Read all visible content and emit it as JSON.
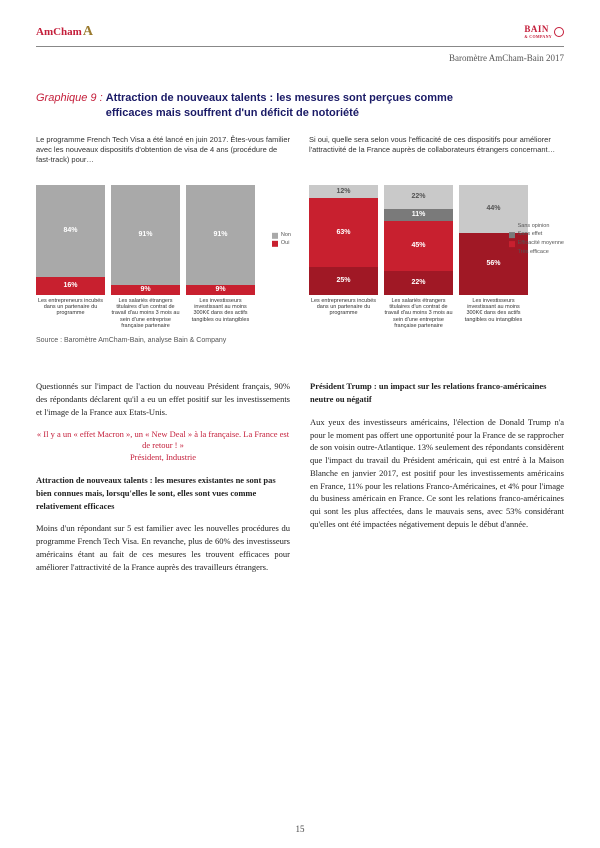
{
  "header": {
    "amcham": "AmCham",
    "bain": "BAIN",
    "bain_sub": "& COMPANY",
    "doc_title": "Baromètre AmCham-Bain 2017"
  },
  "graphique": {
    "num": "Graphique 9  : ",
    "title_line1": "Attraction de nouveaux talents : les mesures sont perçues comme",
    "title_line2": "efficaces mais souffrent d'un déficit de notoriété"
  },
  "chart_left": {
    "question": "Le programme French Tech Visa a été lancé en juin 2017. Êtes-vous familier avec les nouveaux dispositifs d'obtention de visa de 4 ans (procédure de fast-track) pour…",
    "bars": [
      {
        "segs": [
          {
            "v": 16,
            "c": "red",
            "t": "16%"
          },
          {
            "v": 84,
            "c": "grey",
            "t": "84%"
          }
        ],
        "label": "Les entrepreneurs incubés dans un partenaire du programme"
      },
      {
        "segs": [
          {
            "v": 9,
            "c": "red",
            "t": "9%"
          },
          {
            "v": 91,
            "c": "grey",
            "t": "91%"
          }
        ],
        "label": "Les salariés étrangers titulaires d'un contrat de travail d'au moins 3 mois au sein d'une entreprise française partenaire"
      },
      {
        "segs": [
          {
            "v": 9,
            "c": "red",
            "t": "9%"
          },
          {
            "v": 91,
            "c": "grey",
            "t": "91%"
          }
        ],
        "label": "Les investisseurs investissant au moins 300K€ dans des actifs tangibles ou intangibles"
      }
    ],
    "legend": [
      {
        "c": "#a9a9a9",
        "t": "Non"
      },
      {
        "c": "#c8202f",
        "t": "Oui"
      }
    ]
  },
  "chart_right": {
    "question": "Si oui, quelle sera selon vous l'efficacité de ces dispositifs pour améliorer l'attractivité de la France auprès de collaborateurs étrangers concernant…",
    "bars": [
      {
        "segs": [
          {
            "v": 25,
            "c": "red",
            "t": "25%"
          },
          {
            "v": 63,
            "c": "red",
            "t": "63%"
          },
          {
            "v": 0,
            "c": "dgrey",
            "t": ""
          },
          {
            "v": 12,
            "c": "lgrey",
            "t": "12%"
          }
        ],
        "label": "Les entrepreneurs incubés dans un partenaire du programme"
      },
      {
        "segs": [
          {
            "v": 22,
            "c": "red",
            "t": "22%"
          },
          {
            "v": 45,
            "c": "red",
            "t": "45%"
          },
          {
            "v": 11,
            "c": "dgrey",
            "t": "11%"
          },
          {
            "v": 22,
            "c": "lgrey",
            "t": "22%"
          }
        ],
        "label": "Les salariés étrangers titulaires d'un contrat de travail d'au moins 3 mois au sein d'une entreprise française partenaire"
      },
      {
        "segs": [
          {
            "v": 56,
            "c": "red",
            "t": "56%"
          },
          {
            "v": 0,
            "c": "red",
            "t": ""
          },
          {
            "v": 0,
            "c": "dgrey",
            "t": ""
          },
          {
            "v": 44,
            "c": "lgrey",
            "t": "44%"
          }
        ],
        "label": "Les investisseurs investissant au moins 300K€ dans des actifs tangibles ou intangibles"
      }
    ],
    "legend": [
      {
        "c": "#c9c9c9",
        "t": "Sans opinion"
      },
      {
        "c": "#7a7a7a",
        "t": "Sans effet"
      },
      {
        "c": "#c8202f",
        "t": "Efficacité moyenne"
      },
      {
        "c": "#a01825",
        "t": "Très efficace"
      }
    ]
  },
  "source": "Source : Baromètre AmCham-Bain, analyse Bain & Company",
  "body": {
    "left": {
      "p1": "Questionnés sur l'impact de l'action du nouveau Président français, 90% des répondants déclarent qu'il a eu un effet positif sur les investissements et l'image de la France aux Etats-Unis.",
      "quote1": "« Il y a un « effet Macron », un « New Deal » à la française. La France est de retour ! »",
      "quote2": "Président, Industrie",
      "sub": "Attraction de nouveaux talents : les mesures existantes ne sont pas bien connues mais, lorsqu'elles le sont, elles sont vues comme relativement efficaces",
      "p2": "Moins d'un répondant sur 5 est familier avec les nouvelles procédures du programme French Tech Visa. En revanche, plus de 60% des investisseurs américains étant au fait de ces mesures les trouvent efficaces pour améliorer l'attractivité de la France auprès des travailleurs étrangers."
    },
    "right": {
      "sub": "Président Trump : un impact sur les relations franco-américaines neutre ou négatif",
      "p1": "Aux yeux des investisseurs américains, l'élection de Donald Trump n'a pour le moment pas offert une opportunité pour la France de se rapprocher de son voisin outre-Atlantique. 13% seulement des répondants considèrent que l'impact du travail du Président américain, qui est entré à la Maison Blanche en janvier 2017, est positif pour les investissements américains en France, 11% pour les relations Franco-Américaines, et 4% pour l'image du business américain en France. Ce sont les relations franco-américaines qui sont les plus affectées, dans le mauvais sens, avec 53% considérant qu'elles ont été impactées négativement depuis le début d'année."
    }
  },
  "page": "15"
}
